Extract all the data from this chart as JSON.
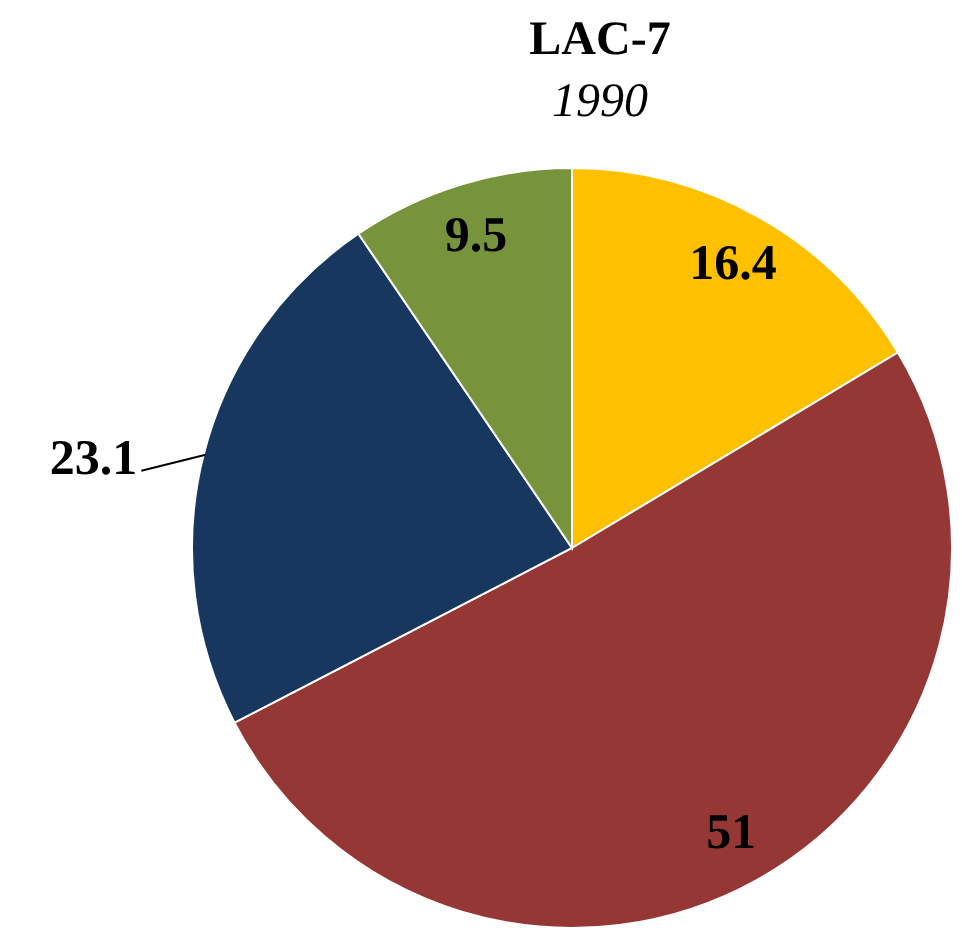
{
  "chart_data": {
    "type": "pie",
    "title": "LAC-7",
    "subtitle": "1990",
    "categories": [
      null,
      null,
      null,
      null
    ],
    "values": [
      16.4,
      51,
      23.1,
      9.5
    ],
    "colors": [
      "#ffc000",
      "#953735",
      "#17375e",
      "#77933c"
    ],
    "data_labels": true
  }
}
